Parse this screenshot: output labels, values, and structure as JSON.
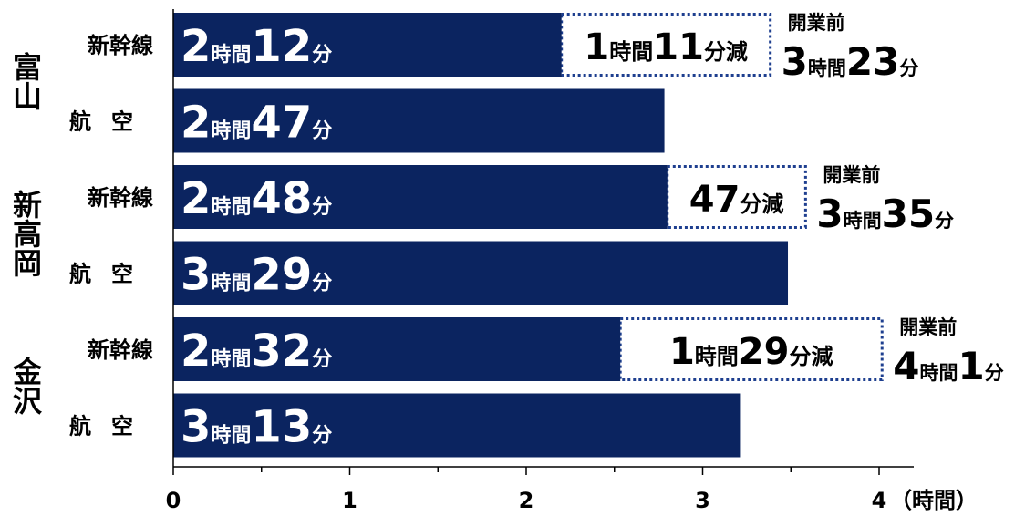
{
  "chart_data": {
    "type": "bar",
    "orientation": "horizontal",
    "xlim": [
      0,
      4
    ],
    "x_ticks": [
      "0",
      "1",
      "2",
      "3",
      "4"
    ],
    "x_unit_label": "（時間）",
    "grid": false,
    "colors": {
      "bar": "#0B2460",
      "bar_text": "#ffffff",
      "dotted_box": "#1E3F8F",
      "text": "#000000"
    },
    "groups": [
      {
        "name": "富山",
        "rows": [
          {
            "mode": "新幹線",
            "value": 2.2,
            "h": "2",
            "m": "12",
            "reduction": {
              "h": "1",
              "m": "11",
              "suffix": "分減"
            },
            "before": {
              "label": "開業前",
              "value": 3.3833,
              "h": "3",
              "m": "23"
            }
          },
          {
            "mode": "航空",
            "value": 2.7833,
            "h": "2",
            "m": "47"
          }
        ]
      },
      {
        "name": "新高岡",
        "rows": [
          {
            "mode": "新幹線",
            "value": 2.8,
            "h": "2",
            "m": "48",
            "reduction": {
              "h": "",
              "m": "47",
              "suffix": "分減"
            },
            "before": {
              "label": "開業前",
              "value": 3.5833,
              "h": "3",
              "m": "35"
            }
          },
          {
            "mode": "航空",
            "value": 3.4833,
            "h": "3",
            "m": "29"
          }
        ]
      },
      {
        "name": "金沢",
        "rows": [
          {
            "mode": "新幹線",
            "value": 2.5333,
            "h": "2",
            "m": "32",
            "reduction": {
              "h": "1",
              "m": "29",
              "suffix": "分減"
            },
            "before": {
              "label": "開業前",
              "value": 4.0167,
              "h": "4",
              "m": "1"
            }
          },
          {
            "mode": "航空",
            "value": 3.2167,
            "h": "3",
            "m": "13"
          }
        ]
      }
    ],
    "units": {
      "hour": "時間",
      "minute": "分"
    }
  }
}
